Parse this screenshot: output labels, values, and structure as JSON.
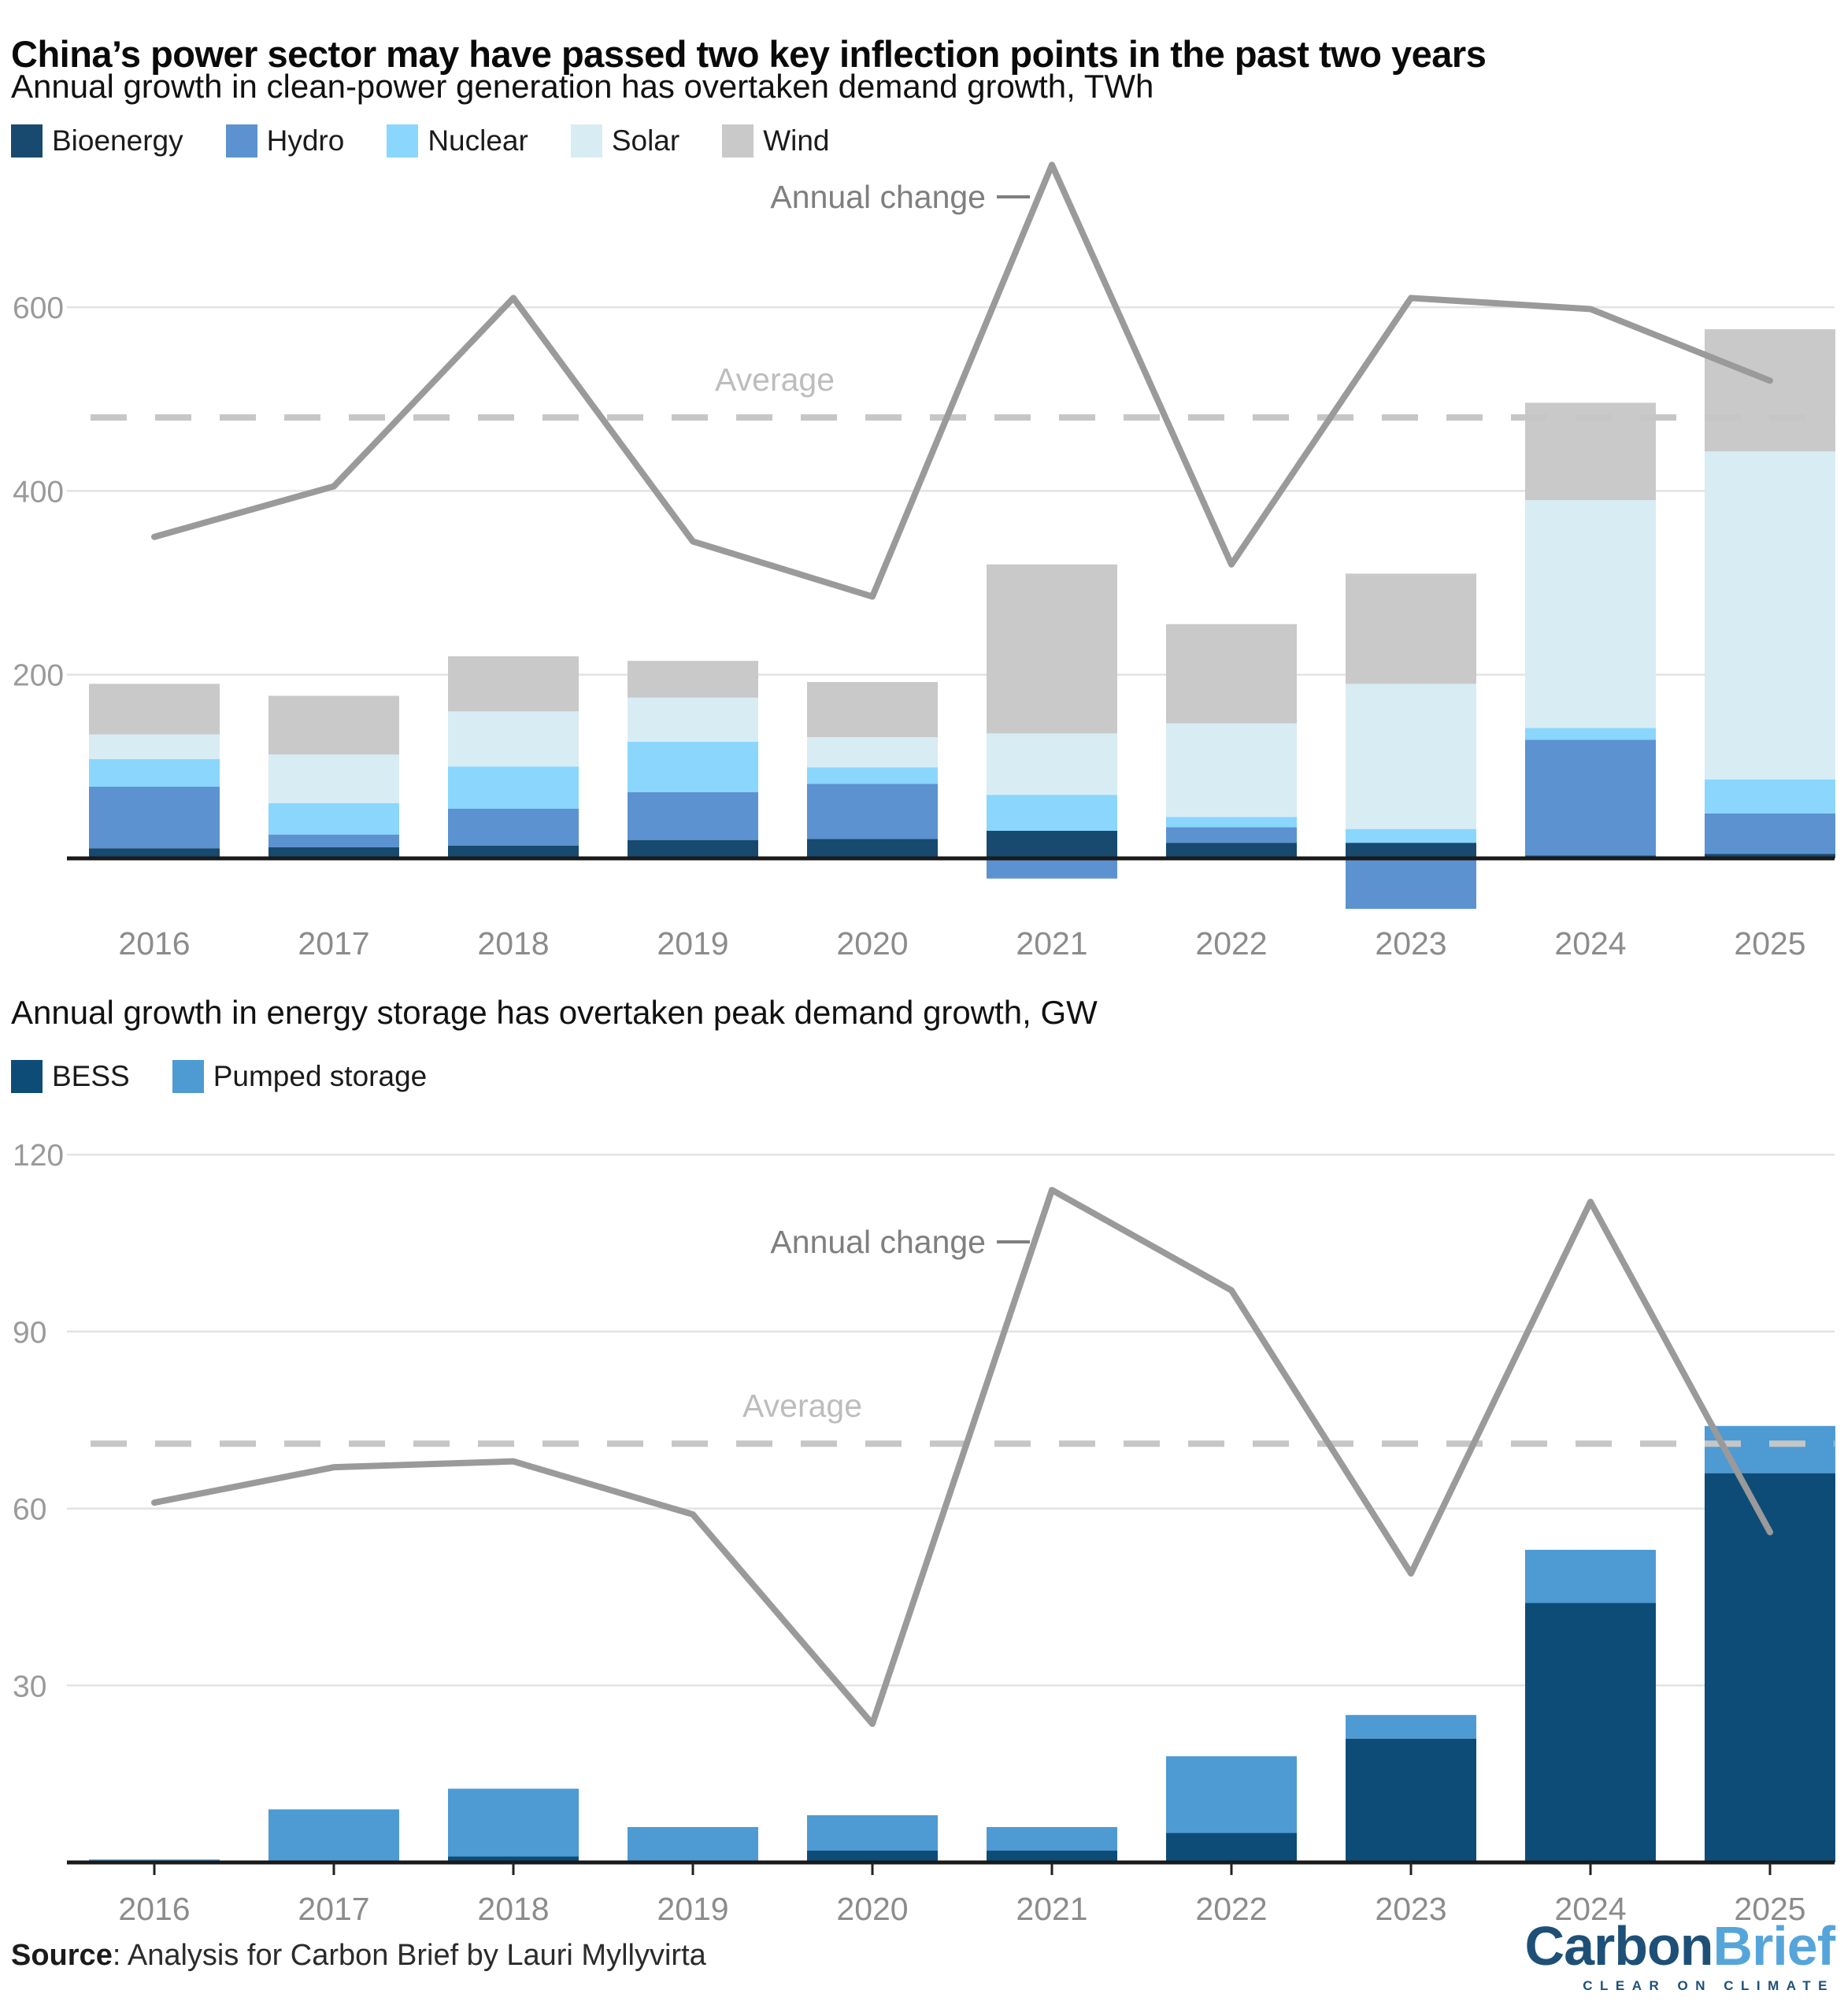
{
  "page": {
    "title": "China’s power sector may have passed two key inflection points in the past two years",
    "source_prefix": "Source",
    "source_text": ": Analysis for Carbon Brief by Lauri Myllyvirta",
    "logo": {
      "part1": "Carbon",
      "part2": "Brief",
      "tagline": "CLEAR ON CLIMATE"
    }
  },
  "chart_data": [
    {
      "type": "bar",
      "title": "Annual growth in clean-power generation has overtaken demand growth, TWh",
      "unit": "TWh",
      "categories": [
        "2016",
        "2017",
        "2018",
        "2019",
        "2020",
        "2021",
        "2022",
        "2023",
        "2024",
        "2025"
      ],
      "series": [
        {
          "name": "Bioenergy",
          "color": "#174a6e",
          "values": [
            11,
            12,
            14,
            20,
            21,
            30,
            17,
            17,
            3,
            5
          ]
        },
        {
          "name": "Hydro",
          "color": "#5c92d0",
          "values": [
            67,
            14,
            40,
            52,
            60,
            -22,
            17,
            -55,
            126,
            44
          ]
        },
        {
          "name": "Nuclear",
          "color": "#8ad6fd",
          "values": [
            30,
            34,
            46,
            55,
            18,
            39,
            11,
            15,
            13,
            37
          ]
        },
        {
          "name": "Solar",
          "color": "#d8ecf4",
          "values": [
            27,
            53,
            60,
            48,
            33,
            67,
            102,
            158,
            248,
            357
          ]
        },
        {
          "name": "Wind",
          "color": "#c9c9c9",
          "values": [
            55,
            64,
            60,
            40,
            60,
            184,
            108,
            120,
            106,
            133
          ]
        }
      ],
      "line": {
        "name": "Annual change",
        "color": "#9a9a9a",
        "values": [
          350,
          405,
          610,
          345,
          285,
          755,
          320,
          610,
          598,
          520
        ]
      },
      "average": {
        "label": "Average",
        "value": 480
      },
      "yticks": [
        200,
        400,
        600
      ],
      "ylim": [
        -70,
        760
      ],
      "grid": true,
      "legend_position": "top"
    },
    {
      "type": "bar",
      "title": "Annual growth in energy storage has overtaken peak demand growth, GW",
      "unit": "GW",
      "categories": [
        "2016",
        "2017",
        "2018",
        "2019",
        "2020",
        "2021",
        "2022",
        "2023",
        "2024",
        "2025"
      ],
      "series": [
        {
          "name": "BESS",
          "color": "#0e4c78",
          "values": [
            0,
            0,
            1,
            0,
            2,
            2,
            5,
            21,
            44,
            66
          ]
        },
        {
          "name": "Pumped storage",
          "color": "#4e9ad3",
          "values": [
            0.5,
            9,
            11.5,
            6,
            6,
            4,
            13,
            4,
            9,
            8
          ]
        }
      ],
      "line": {
        "name": "Annual change",
        "color": "#9a9a9a",
        "values": [
          61,
          67,
          68,
          59,
          23.5,
          114,
          97,
          49,
          112,
          56
        ]
      },
      "average": {
        "label": "Average",
        "value": 71
      },
      "yticks": [
        30,
        60,
        90,
        120
      ],
      "ylim": [
        0,
        120
      ],
      "grid": true,
      "legend_position": "top"
    }
  ]
}
